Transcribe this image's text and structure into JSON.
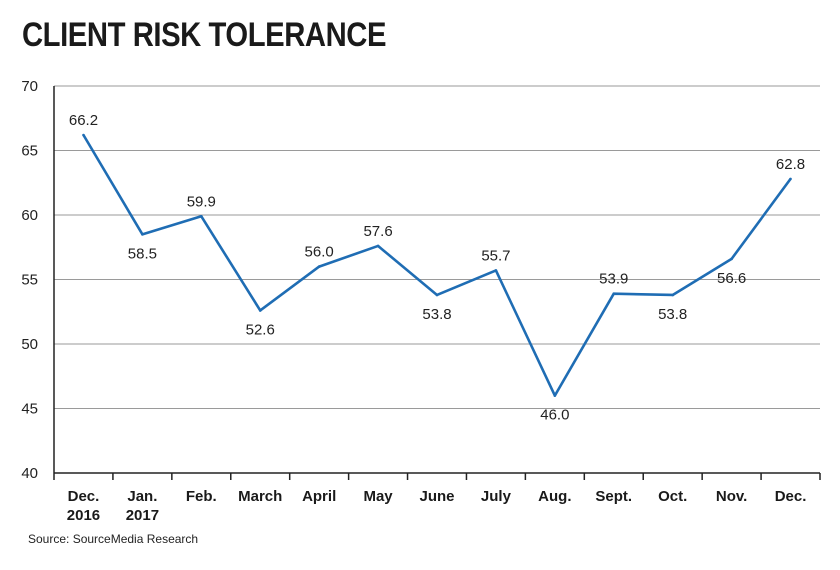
{
  "chart_data": {
    "type": "line",
    "title": "CLIENT RISK TOLERANCE",
    "source": "Source: SourceMedia Research",
    "xlabel": "",
    "ylabel": "",
    "ylim": [
      40,
      70
    ],
    "yticks": [
      40,
      45,
      50,
      55,
      60,
      65,
      70
    ],
    "grid": true,
    "line_color": "#1f6db4",
    "categories": [
      [
        "Dec.",
        "2016"
      ],
      [
        "Jan.",
        "2017"
      ],
      [
        "Feb."
      ],
      [
        "March"
      ],
      [
        "April"
      ],
      [
        "May"
      ],
      [
        "June"
      ],
      [
        "July"
      ],
      [
        "Aug."
      ],
      [
        "Sept."
      ],
      [
        "Oct."
      ],
      [
        "Nov."
      ],
      [
        "Dec."
      ]
    ],
    "values": [
      66.2,
      58.5,
      59.9,
      52.6,
      56.0,
      57.6,
      53.8,
      55.7,
      46.0,
      53.9,
      53.8,
      56.6,
      62.8
    ],
    "value_labels": [
      "66.2",
      "58.5",
      "59.9",
      "52.6",
      "56.0",
      "57.6",
      "53.8",
      "55.7",
      "46.0",
      "53.9",
      "53.8",
      "56.6",
      "62.8"
    ],
    "label_positions": [
      "above",
      "below",
      "above",
      "below",
      "above",
      "above",
      "below",
      "above",
      "below",
      "above",
      "below",
      "below",
      "above"
    ]
  }
}
